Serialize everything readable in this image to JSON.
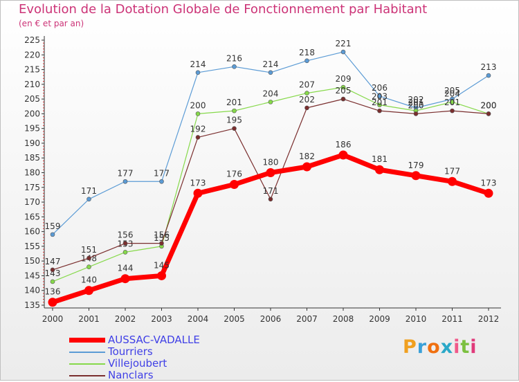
{
  "title": "Evolution de la Dotation Globale de Fonctionnement par Habitant",
  "subtitle": "(en € et par an)",
  "logo_text": "Proxiti",
  "chart_data": {
    "type": "line",
    "title": "Evolution de la Dotation Globale de Fonctionnement par Habitant",
    "ylabel": "(en € et par an)",
    "xlabel": "",
    "ylim": [
      135,
      225
    ],
    "yticks": [
      135,
      140,
      145,
      150,
      155,
      160,
      165,
      170,
      175,
      180,
      185,
      190,
      195,
      200,
      205,
      210,
      215,
      220,
      225
    ],
    "grid": false,
    "legend_position": "bottom-left",
    "categories": [
      "2000",
      "2001",
      "2002",
      "2003",
      "2004",
      "2005",
      "2006",
      "2007",
      "2008",
      "2009",
      "2010",
      "2011",
      "2012"
    ],
    "series": [
      {
        "name": "Tourriers",
        "color": "#5b9bd5",
        "values": [
          159,
          171,
          177,
          177,
          214,
          216,
          214,
          218,
          221,
          206,
          202,
          205,
          213
        ]
      },
      {
        "name": "Villejoubert",
        "color": "#86d94a",
        "values": [
          143,
          148,
          153,
          155,
          200,
          201,
          204,
          207,
          209,
          203,
          201,
          204,
          200
        ]
      },
      {
        "name": "Nanclars",
        "color": "#7a2e2e",
        "values": [
          147,
          151,
          156,
          156,
          192,
          195,
          171,
          202,
          205,
          201,
          200,
          201,
          200
        ]
      },
      {
        "name": "AUSSAC-VADALLE",
        "color": "#ff0000",
        "values": [
          136,
          140,
          144,
          145,
          173,
          176,
          180,
          182,
          186,
          181,
          179,
          177,
          173
        ]
      }
    ]
  }
}
